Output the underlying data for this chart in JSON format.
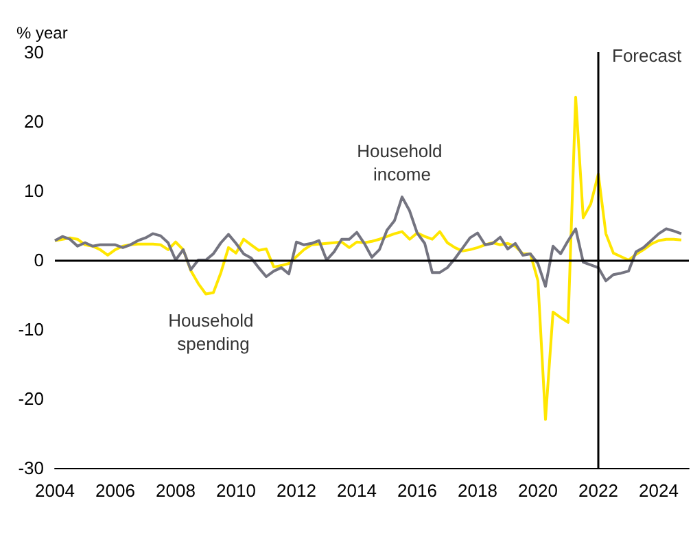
{
  "chart_data": {
    "type": "line",
    "ylabel": "% year",
    "x": [
      2004,
      2004.25,
      2004.5,
      2004.75,
      2005,
      2005.25,
      2005.5,
      2005.75,
      2006,
      2006.25,
      2006.5,
      2006.75,
      2007,
      2007.25,
      2007.5,
      2007.75,
      2008,
      2008.25,
      2008.5,
      2008.75,
      2009,
      2009.25,
      2009.5,
      2009.75,
      2010,
      2010.25,
      2010.5,
      2010.75,
      2011,
      2011.25,
      2011.5,
      2011.75,
      2012,
      2012.25,
      2012.5,
      2012.75,
      2013,
      2013.25,
      2013.5,
      2013.75,
      2014,
      2014.25,
      2014.5,
      2014.75,
      2015,
      2015.25,
      2015.5,
      2015.75,
      2016,
      2016.25,
      2016.5,
      2016.75,
      2017,
      2017.25,
      2017.5,
      2017.75,
      2018,
      2018.25,
      2018.5,
      2018.75,
      2019,
      2019.25,
      2019.5,
      2019.75,
      2020,
      2020.25,
      2020.5,
      2020.75,
      2021,
      2021.25,
      2021.5,
      2021.75,
      2022,
      2022.25,
      2022.5,
      2022.75,
      2023,
      2023.25,
      2023.5,
      2023.75,
      2024,
      2024.25,
      2024.5,
      2024.75
    ],
    "series": [
      {
        "color": "#ffe600",
        "values": [
          2.8,
          3,
          3.2,
          3,
          2.2,
          2,
          1.5,
          0.7,
          1.5,
          2,
          2.2,
          2.3,
          2.3,
          2.3,
          2.2,
          1.5,
          2.6,
          1.5,
          -1.5,
          -3.4,
          -4.9,
          -4.7,
          -1.8,
          1.8,
          1,
          3,
          2.2,
          1.4,
          1.6,
          -1,
          -0.8,
          -0.5,
          0.5,
          1.5,
          2.2,
          2.3,
          2.4,
          2.5,
          2.6,
          1.8,
          2.6,
          2.5,
          2.7,
          3,
          3.4,
          3.8,
          4.1,
          3,
          3.9,
          3.4,
          3,
          4.1,
          2.5,
          1.8,
          1.3,
          1.5,
          1.8,
          2.2,
          2.5,
          2.2,
          2.4,
          2,
          0.9,
          0.9,
          -3,
          -23,
          -7.5,
          -8.3,
          -9,
          23.5,
          6.1,
          8.1,
          12.4,
          3.8,
          1,
          0.5,
          0,
          0.8,
          1.5,
          2.3,
          2.8,
          3,
          3,
          2.9
        ]
      },
      {
        "color": "#747480",
        "values": [
          2.8,
          3.4,
          3,
          2,
          2.5,
          2,
          2.2,
          2.2,
          2.2,
          1.8,
          2.2,
          2.8,
          3.2,
          3.8,
          3.5,
          2.5,
          0,
          1.5,
          -1.4,
          0,
          0,
          0.9,
          2.5,
          3.7,
          2.4,
          0.9,
          0.3,
          -1.1,
          -2.4,
          -1.6,
          -1.1,
          -2,
          2.6,
          2.2,
          2.4,
          2.8,
          0,
          1.2,
          3,
          3,
          4,
          2.4,
          0.4,
          1.5,
          4.3,
          5.7,
          9.1,
          7.1,
          3.9,
          2.4,
          -1.8,
          -1.8,
          -1.1,
          0.2,
          1.7,
          3.2,
          3.9,
          2.2,
          2.4,
          3.3,
          1.6,
          2.4,
          0.7,
          0.9,
          -0.5,
          -3.8,
          2,
          0.9,
          2.8,
          4.5,
          -0.3,
          -0.7,
          -1.1,
          -3,
          -2.1,
          -1.9,
          -1.6,
          1.2,
          1.8,
          2.8,
          3.8,
          4.5,
          4.2,
          3.8
        ]
      }
    ],
    "xlim": [
      2004,
      2025
    ],
    "xticks": [
      2004,
      2006,
      2008,
      2010,
      2012,
      2014,
      2016,
      2018,
      2020,
      2022,
      2024
    ],
    "ylim": [
      -30,
      30
    ],
    "yticks": [
      -30,
      -20,
      -10,
      0,
      10,
      20,
      30
    ],
    "ref_lines": [
      {
        "axis": "y",
        "value": 0,
        "color": "#000000"
      },
      {
        "axis": "x",
        "value": 2022,
        "label": "Forecast",
        "color": "#000000"
      }
    ],
    "annotations": [
      {
        "text": "Household income",
        "x": 2015.5,
        "y": 9.1
      },
      {
        "text": "Household spending",
        "x": 2009.25,
        "y": -4.7
      }
    ],
    "grid": false,
    "marker": "none",
    "line_style": "solid"
  }
}
